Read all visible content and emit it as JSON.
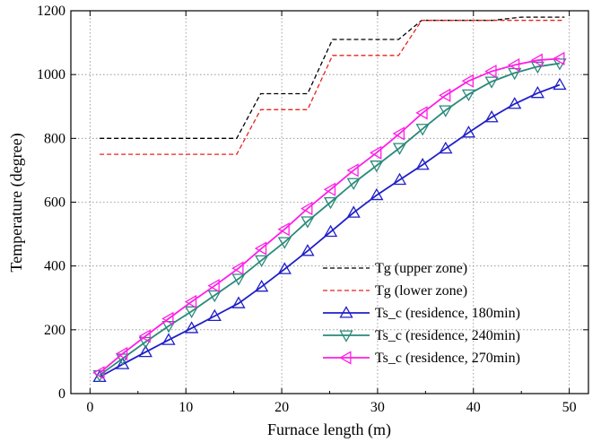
{
  "chart_data": {
    "type": "line",
    "xlabel": "Furnace length (m)",
    "ylabel": "Temperature (degree)",
    "xlim": [
      -2,
      52
    ],
    "ylim": [
      0,
      1200
    ],
    "xticks": [
      0,
      10,
      20,
      30,
      40,
      50
    ],
    "yticks": [
      0,
      200,
      400,
      600,
      800,
      1000,
      1200
    ],
    "grid": true,
    "legend_position": "bottom-right",
    "series": [
      {
        "name": "Tg (upper zone)",
        "style": "dashed",
        "marker": "none",
        "color": "#000000",
        "x": [
          1,
          15.3,
          17.8,
          22.7,
          25.3,
          32.2,
          34.6,
          42,
          45,
          49.5
        ],
        "y": [
          800,
          800,
          940,
          940,
          1110,
          1110,
          1170,
          1170,
          1180,
          1180
        ]
      },
      {
        "name": "Tg (lower zone)",
        "style": "dashed",
        "marker": "none",
        "color": "#e8221c",
        "x": [
          1,
          15.3,
          17.8,
          22.7,
          25.3,
          32.2,
          34.6,
          42,
          45,
          49.5
        ],
        "y": [
          750,
          750,
          890,
          890,
          1060,
          1060,
          1170,
          1170,
          1170,
          1170
        ]
      },
      {
        "name": "Ts_c (residence, 180min)",
        "style": "solid",
        "marker": "triangle-up",
        "color": "#1f1fc8",
        "x": [
          1,
          3.4,
          5.8,
          8.2,
          10.6,
          13,
          15.5,
          17.9,
          20.3,
          22.7,
          25.1,
          27.5,
          29.9,
          32.3,
          34.7,
          37.1,
          39.5,
          41.9,
          44.3,
          46.7,
          49
        ],
        "y": [
          52,
          92,
          130,
          168,
          205,
          243,
          283,
          335,
          390,
          447,
          507,
          567,
          622,
          670,
          717,
          768,
          818,
          866,
          908,
          942,
          968
        ]
      },
      {
        "name": "Ts_c (residence, 240min)",
        "style": "solid",
        "marker": "triangle-down",
        "color": "#2a8a7a",
        "x": [
          1,
          3.4,
          5.8,
          8.2,
          10.6,
          13,
          15.5,
          17.9,
          20.3,
          22.7,
          25.1,
          27.5,
          29.9,
          32.3,
          34.7,
          37.1,
          39.5,
          41.9,
          44.3,
          46.7,
          49
        ],
        "y": [
          58,
          110,
          162,
          212,
          258,
          308,
          360,
          418,
          475,
          540,
          600,
          660,
          715,
          770,
          830,
          888,
          938,
          978,
          1005,
          1025,
          1035
        ]
      },
      {
        "name": "Ts_c (residence, 270min)",
        "style": "solid",
        "marker": "triangle-left",
        "color": "#ff1ee6",
        "x": [
          1,
          3.4,
          5.8,
          8.2,
          10.6,
          13,
          15.5,
          17.9,
          20.3,
          22.7,
          25.1,
          27.5,
          29.9,
          32.3,
          34.7,
          37.1,
          39.5,
          41.9,
          44.3,
          46.7,
          49
        ],
        "y": [
          65,
          125,
          180,
          235,
          288,
          338,
          393,
          455,
          515,
          580,
          640,
          700,
          755,
          815,
          880,
          935,
          980,
          1010,
          1030,
          1045,
          1050
        ]
      }
    ]
  }
}
